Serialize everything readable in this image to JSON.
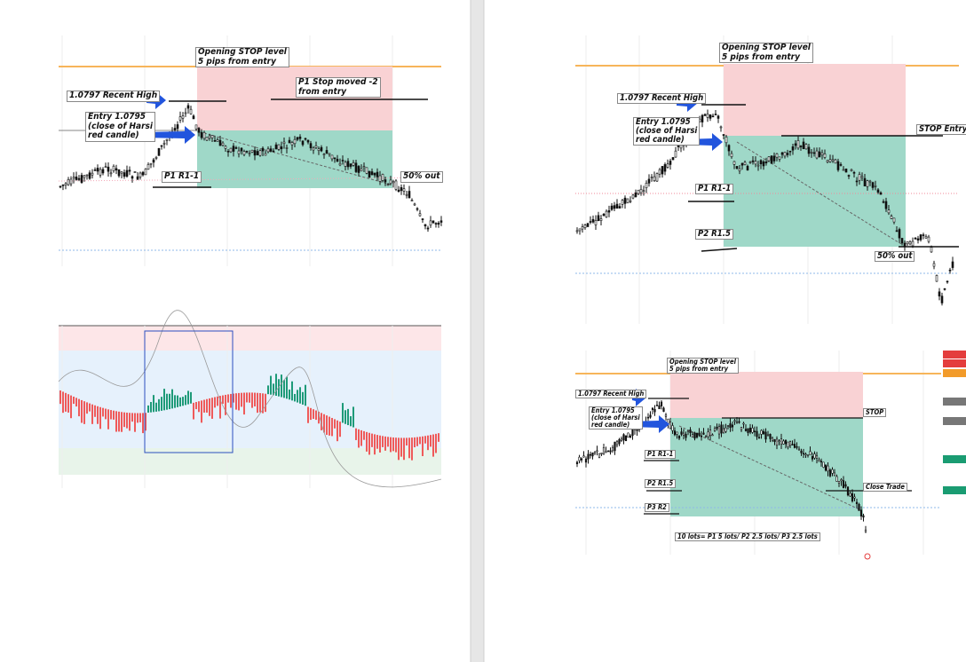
{
  "left_chart": {
    "stop_note": [
      "Opening STOP level",
      "5 pips from entry"
    ],
    "stop_moved_note": [
      "P1 Stop moved -2",
      "from entry"
    ],
    "recent_high": "1.0797 Recent High",
    "entry_note": [
      "Entry 1.0795",
      "(close of Harsi",
      "red candle)"
    ],
    "p1": "P1 R1-1",
    "half_out": "50% out"
  },
  "right_top_chart": {
    "stop_note": [
      "Opening STOP level",
      "5 pips from entry"
    ],
    "recent_high": "1.0797 Recent High",
    "entry_note": [
      "Entry 1.0795",
      "(close of Harsi",
      "red candle)"
    ],
    "stop_entry": "STOP Entry",
    "p1": "P1 R1-1",
    "p2": "P2 R1.5",
    "half_out": "50% out"
  },
  "right_bottom_chart": {
    "stop_note": [
      "Opening STOP level",
      "5 pips from entry"
    ],
    "recent_high": "1.0797 Recent High",
    "entry_note": [
      "Entry 1.0795",
      "(close of Harsi",
      "red candle)"
    ],
    "stop": "STOP",
    "p1": "P1 R1-1",
    "p2": "P2 R1.5",
    "p3": "P3 R2",
    "close_trade": "Close Trade",
    "lots_note": "10 lots= P1 5 lots/ P2 2.5 lots/ P3 2.5 lots"
  }
}
